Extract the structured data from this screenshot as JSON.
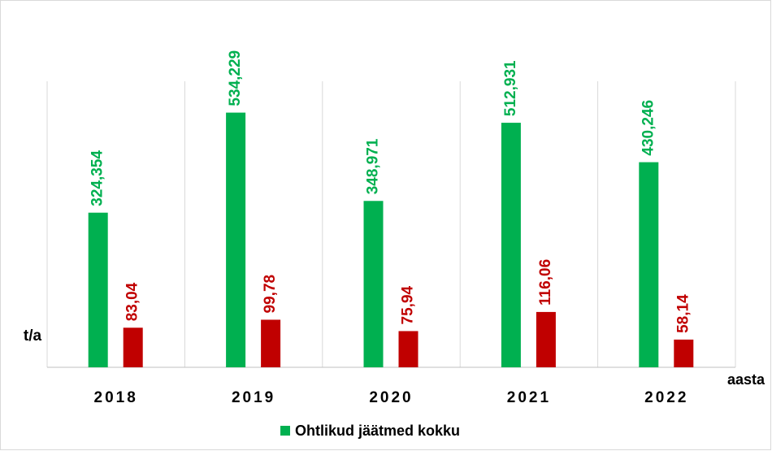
{
  "chart_data": {
    "type": "bar",
    "categories": [
      "2018",
      "2019",
      "2020",
      "2021",
      "2022"
    ],
    "series": [
      {
        "name": "Ohtlikud jäätmed kokku",
        "color": "#00b050",
        "values": [
          324.354,
          534.229,
          348.971,
          512.931,
          430.246
        ],
        "value_labels": [
          "324,354",
          "534,229",
          "348,971",
          "512,931",
          "430,246"
        ]
      },
      {
        "color": "#c00000",
        "values": [
          83.04,
          99.78,
          75.94,
          116.06,
          58.14
        ],
        "value_labels": [
          "83,04",
          "99,78",
          "75,94",
          "116,06",
          "58,14"
        ]
      }
    ],
    "ylabel": "t/a",
    "xlabel": "aasta",
    "ylim": [
      0,
      600
    ],
    "legend": "bottom"
  }
}
